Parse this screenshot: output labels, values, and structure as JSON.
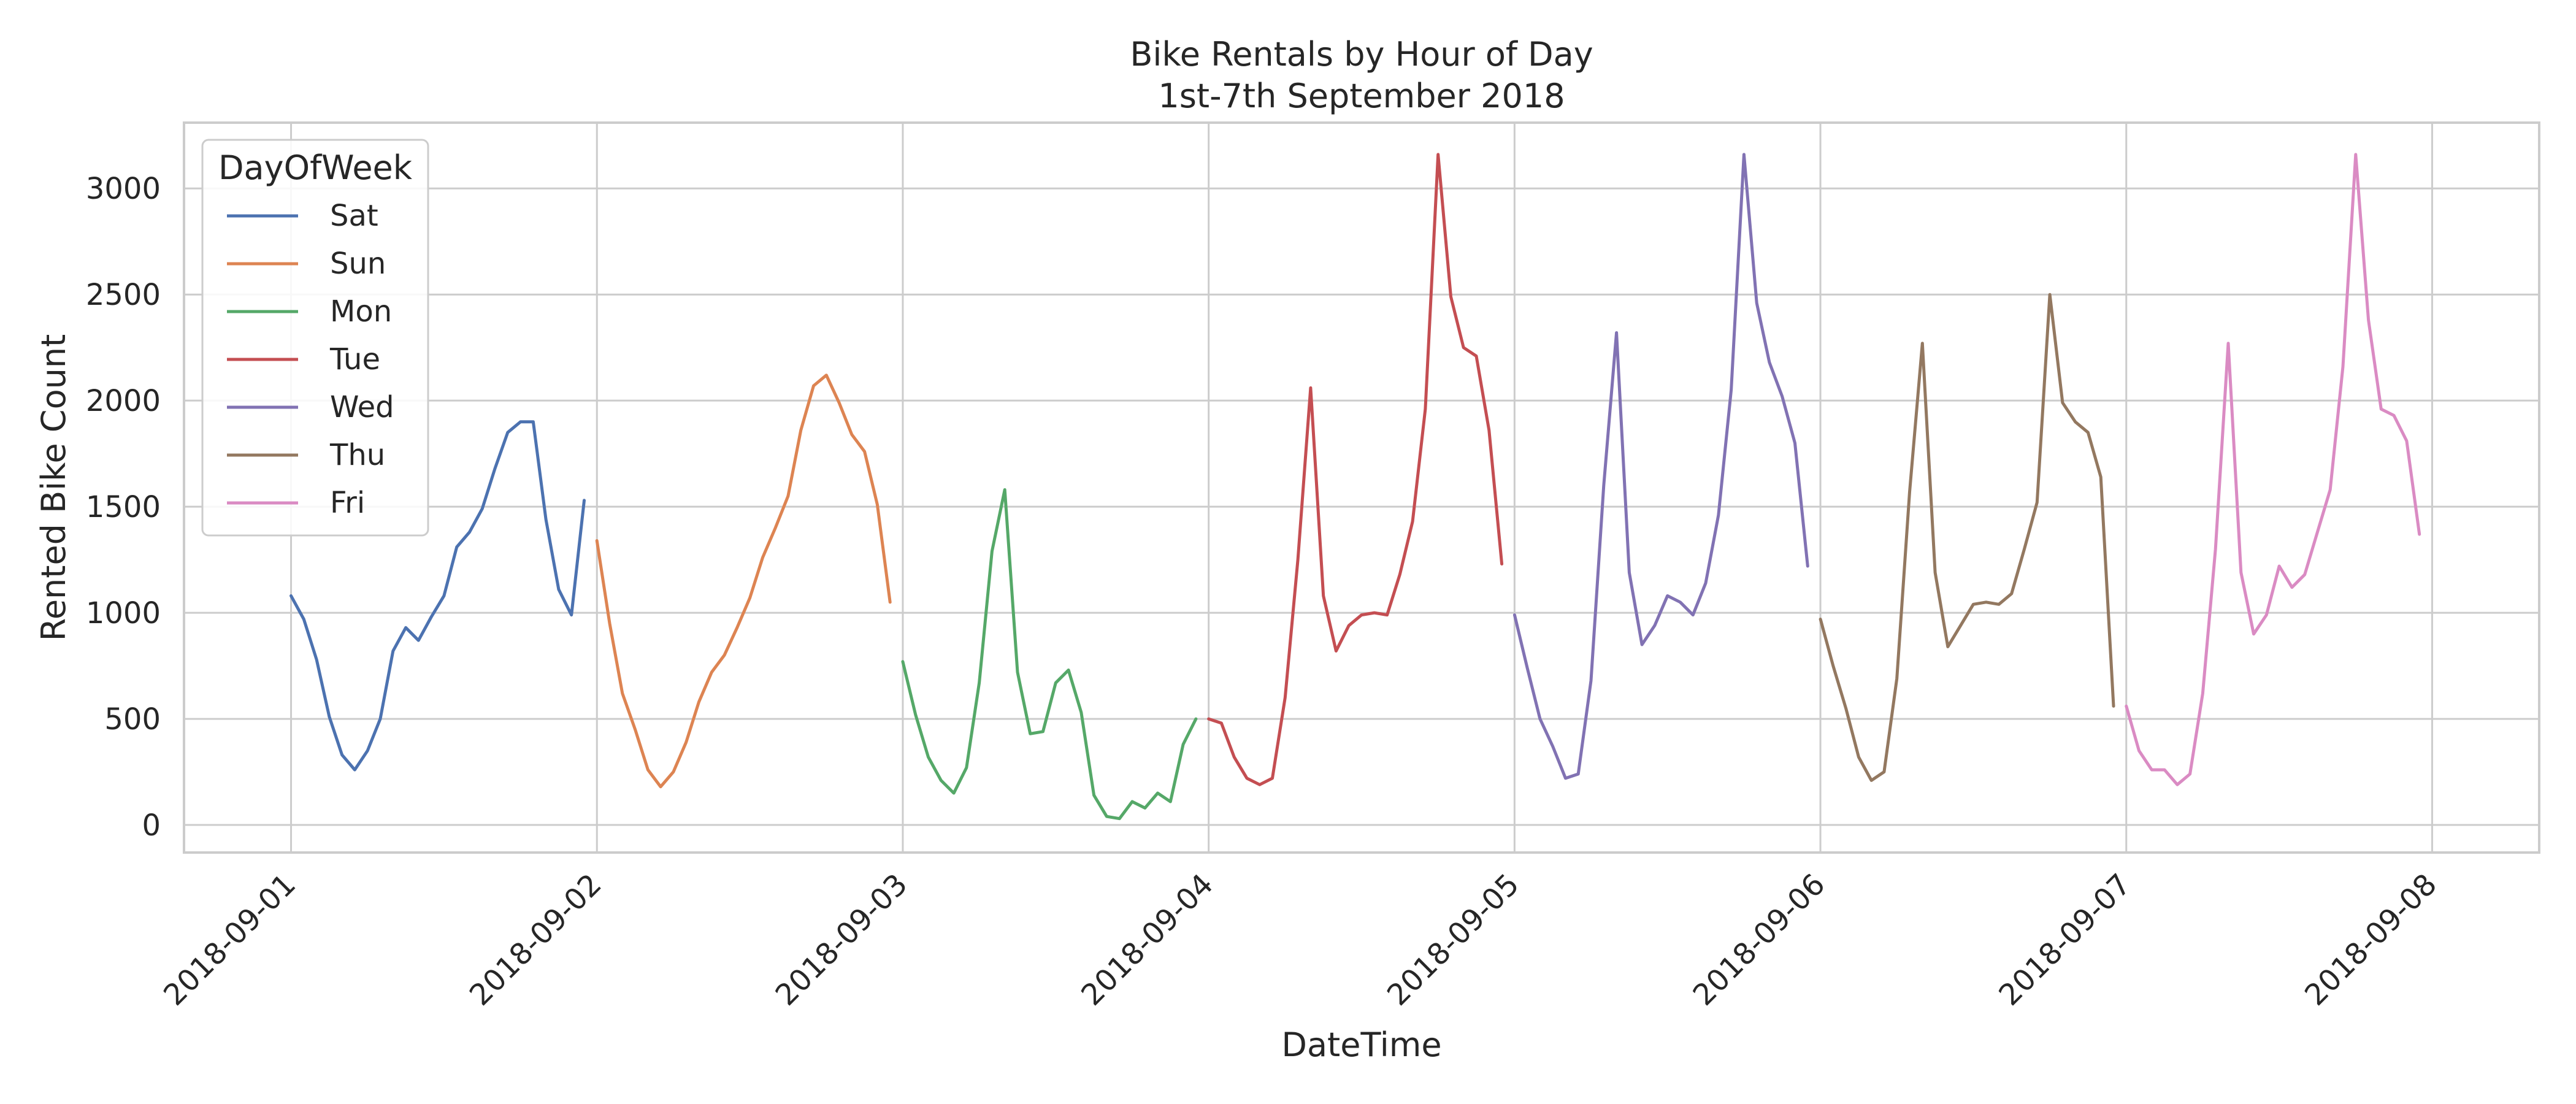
{
  "chart_data": {
    "type": "line",
    "title": "Bike Rentals by Hour of Day",
    "subtitle": "1st-7th September 2018",
    "xlabel": "DateTime",
    "ylabel": "Rented Bike Count",
    "x_ticks": [
      "2018-09-01",
      "2018-09-02",
      "2018-09-03",
      "2018-09-04",
      "2018-09-05",
      "2018-09-06",
      "2018-09-07",
      "2018-09-08"
    ],
    "y_ticks": [
      0,
      500,
      1000,
      1500,
      2000,
      2500,
      3000
    ],
    "ylim": [
      -130,
      3310
    ],
    "xlim": [
      "2018-08-31 15:36",
      "2018-09-08 08:24"
    ],
    "grid": true,
    "legend": {
      "title": "DayOfWeek",
      "location": "top-left"
    },
    "series": [
      {
        "name": "Sat",
        "color": "#4c72b0",
        "date": "2018-09-01",
        "values": [
          1080,
          970,
          780,
          510,
          330,
          260,
          350,
          500,
          820,
          930,
          870,
          980,
          1080,
          1310,
          1380,
          1490,
          1680,
          1850,
          1900,
          1900,
          1440,
          1110,
          990,
          1530
        ]
      },
      {
        "name": "Sun",
        "color": "#dd8452",
        "date": "2018-09-02",
        "values": [
          1340,
          950,
          620,
          450,
          260,
          180,
          250,
          390,
          580,
          720,
          800,
          930,
          1070,
          1260,
          1400,
          1550,
          1860,
          2070,
          2120,
          1990,
          1840,
          1760,
          1510,
          1050
        ]
      },
      {
        "name": "Mon",
        "color": "#55a868",
        "date": "2018-09-03",
        "values": [
          770,
          520,
          320,
          210,
          150,
          270,
          670,
          1290,
          1580,
          720,
          430,
          440,
          670,
          730,
          530,
          140,
          40,
          30,
          110,
          80,
          150,
          110,
          380,
          500
        ]
      },
      {
        "name": "Tue",
        "color": "#c44e52",
        "date": "2018-09-04",
        "values": [
          500,
          480,
          320,
          220,
          190,
          220,
          600,
          1250,
          2060,
          1080,
          820,
          940,
          990,
          1000,
          990,
          1180,
          1430,
          1960,
          3160,
          2490,
          2250,
          2210,
          1860,
          1230
        ]
      },
      {
        "name": "Wed",
        "color": "#8172b3",
        "date": "2018-09-05",
        "values": [
          990,
          740,
          500,
          370,
          220,
          240,
          680,
          1600,
          2320,
          1190,
          850,
          940,
          1080,
          1050,
          990,
          1140,
          1460,
          2050,
          3160,
          2460,
          2180,
          2020,
          1800,
          1220
        ]
      },
      {
        "name": "Thu",
        "color": "#937860",
        "date": "2018-09-06",
        "values": [
          970,
          750,
          550,
          320,
          210,
          250,
          690,
          1570,
          2270,
          1190,
          840,
          940,
          1040,
          1050,
          1040,
          1090,
          1300,
          1520,
          2500,
          1990,
          1900,
          1850,
          1640,
          560
        ]
      },
      {
        "name": "Fri",
        "color": "#da8bc3",
        "date": "2018-09-07",
        "values": [
          560,
          350,
          260,
          260,
          190,
          240,
          620,
          1300,
          2270,
          1190,
          900,
          990,
          1220,
          1120,
          1180,
          1380,
          1580,
          2160,
          3160,
          2380,
          1960,
          1930,
          1810,
          1370
        ]
      }
    ]
  }
}
